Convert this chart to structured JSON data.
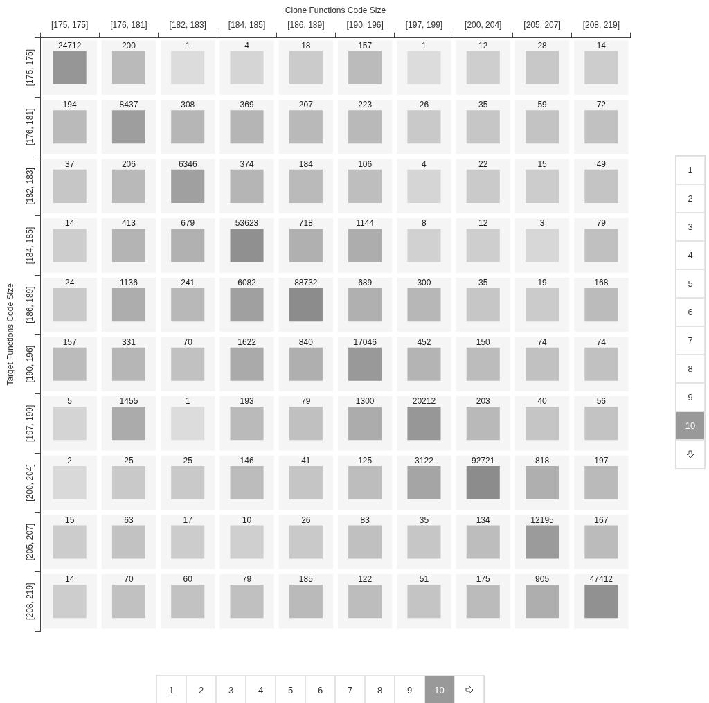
{
  "chart_data": {
    "type": "heatmap",
    "xlabel": "Clone Functions Code Size",
    "ylabel": "Target Functions Code Size",
    "categories": [
      "[175, 175]",
      "[176, 181]",
      "[182, 183]",
      "[184, 185]",
      "[186, 189]",
      "[190, 196]",
      "[197, 199]",
      "[200, 204]",
      "[205, 207]",
      "[208, 219]"
    ],
    "y_categories": [
      "[175, 175]",
      "[176, 181]",
      "[182, 183]",
      "[184, 185]",
      "[186, 189]",
      "[190, 196]",
      "[197, 199]",
      "[200, 204]",
      "[205, 207]",
      "[208, 219]"
    ],
    "cells": [
      [
        24712,
        200,
        1,
        4,
        18,
        157,
        1,
        12,
        28,
        14
      ],
      [
        194,
        8437,
        308,
        369,
        207,
        223,
        26,
        35,
        59,
        72
      ],
      [
        37,
        206,
        6346,
        374,
        184,
        106,
        4,
        22,
        15,
        49
      ],
      [
        14,
        413,
        679,
        53623,
        718,
        1144,
        8,
        12,
        3,
        79
      ],
      [
        24,
        1136,
        241,
        6082,
        88732,
        689,
        300,
        35,
        19,
        168
      ],
      [
        157,
        331,
        70,
        1622,
        840,
        17046,
        452,
        150,
        74,
        74
      ],
      [
        5,
        1455,
        1,
        193,
        79,
        1300,
        20212,
        203,
        40,
        56
      ],
      [
        2,
        25,
        25,
        146,
        41,
        125,
        3122,
        92721,
        818,
        197
      ],
      [
        15,
        63,
        17,
        10,
        26,
        83,
        35,
        134,
        12195,
        167
      ],
      [
        14,
        70,
        60,
        79,
        185,
        122,
        51,
        175,
        905,
        47412
      ]
    ],
    "data_labels": true,
    "annotations": [
      "1",
      "2",
      "3",
      "4",
      "5",
      "6",
      "7",
      "8",
      "9",
      "10",
      "1",
      "2",
      "3",
      "4",
      "5",
      "6",
      "7",
      "8",
      "9",
      "10"
    ]
  }
}
